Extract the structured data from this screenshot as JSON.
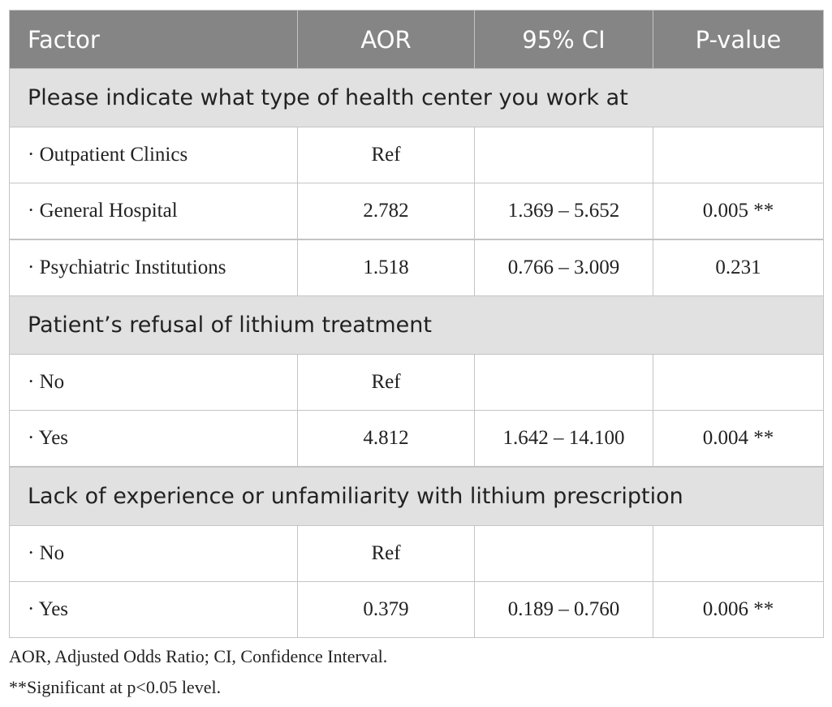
{
  "table": {
    "header": [
      "Factor",
      "AOR",
      "95% CI",
      "P-value"
    ],
    "sections": [
      {
        "title": "Please indicate what type of health center you work at",
        "rows": [
          {
            "factor": "· Outpatient Clinics",
            "aor": "Ref"
          },
          {
            "factor": "· General Hospital",
            "aor": "2.782",
            "ci": "1.369 – 5.652",
            "p": "0.005 **"
          },
          {
            "factor": "· Psychiatric Institutions",
            "aor": "1.518",
            "ci": "0.766 – 3.009",
            "p": "0.231"
          }
        ]
      },
      {
        "title": "Patient’s refusal of lithium treatment",
        "rows": [
          {
            "factor": "· No",
            "aor": "Ref"
          },
          {
            "factor": "· Yes",
            "aor": "4.812",
            "ci": "1.642 – 14.100",
            "p": "0.004 **"
          }
        ]
      },
      {
        "title": "Lack of experience or unfamiliarity with lithium prescription",
        "rows": [
          {
            "factor": "· No",
            "aor": "Ref"
          },
          {
            "factor": "· Yes",
            "aor": "0.379",
            "ci": "0.189 – 0.760",
            "p": "0.006 **"
          }
        ]
      }
    ]
  },
  "footnotes": [
    "AOR, Adjusted Odds Ratio; CI, Confidence Interval.",
    "**Significant at p<0.05 level."
  ]
}
